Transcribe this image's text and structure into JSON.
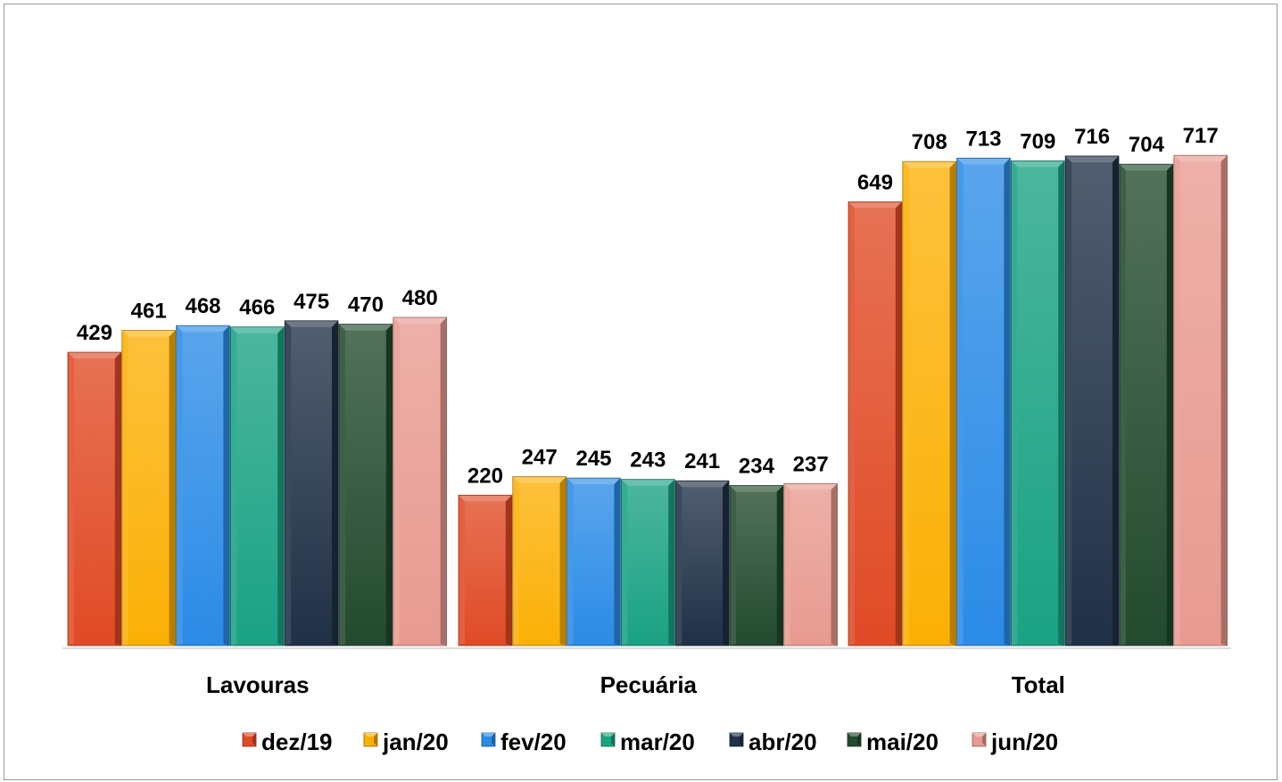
{
  "chart_data": {
    "type": "bar",
    "title": "",
    "xlabel": "",
    "ylabel": "",
    "ylim": [
      0,
      800
    ],
    "grid": false,
    "legend_position": "bottom",
    "categories": [
      "Lavouras",
      "Pecuária",
      "Total"
    ],
    "series": [
      {
        "name": "dez/19",
        "color": "#e04a25",
        "values": [
          429,
          220,
          649
        ]
      },
      {
        "name": "jan/20",
        "color": "#fbb005",
        "values": [
          461,
          247,
          708
        ]
      },
      {
        "name": "fev/20",
        "color": "#2b8be6",
        "values": [
          468,
          245,
          713
        ]
      },
      {
        "name": "mar/20",
        "color": "#1aa283",
        "values": [
          466,
          243,
          709
        ]
      },
      {
        "name": "abr/20",
        "color": "#203046",
        "values": [
          475,
          241,
          716
        ]
      },
      {
        "name": "mai/20",
        "color": "#224a2e",
        "values": [
          470,
          234,
          704
        ]
      },
      {
        "name": "jun/20",
        "color": "#e89a90",
        "values": [
          480,
          237,
          717
        ]
      }
    ]
  }
}
